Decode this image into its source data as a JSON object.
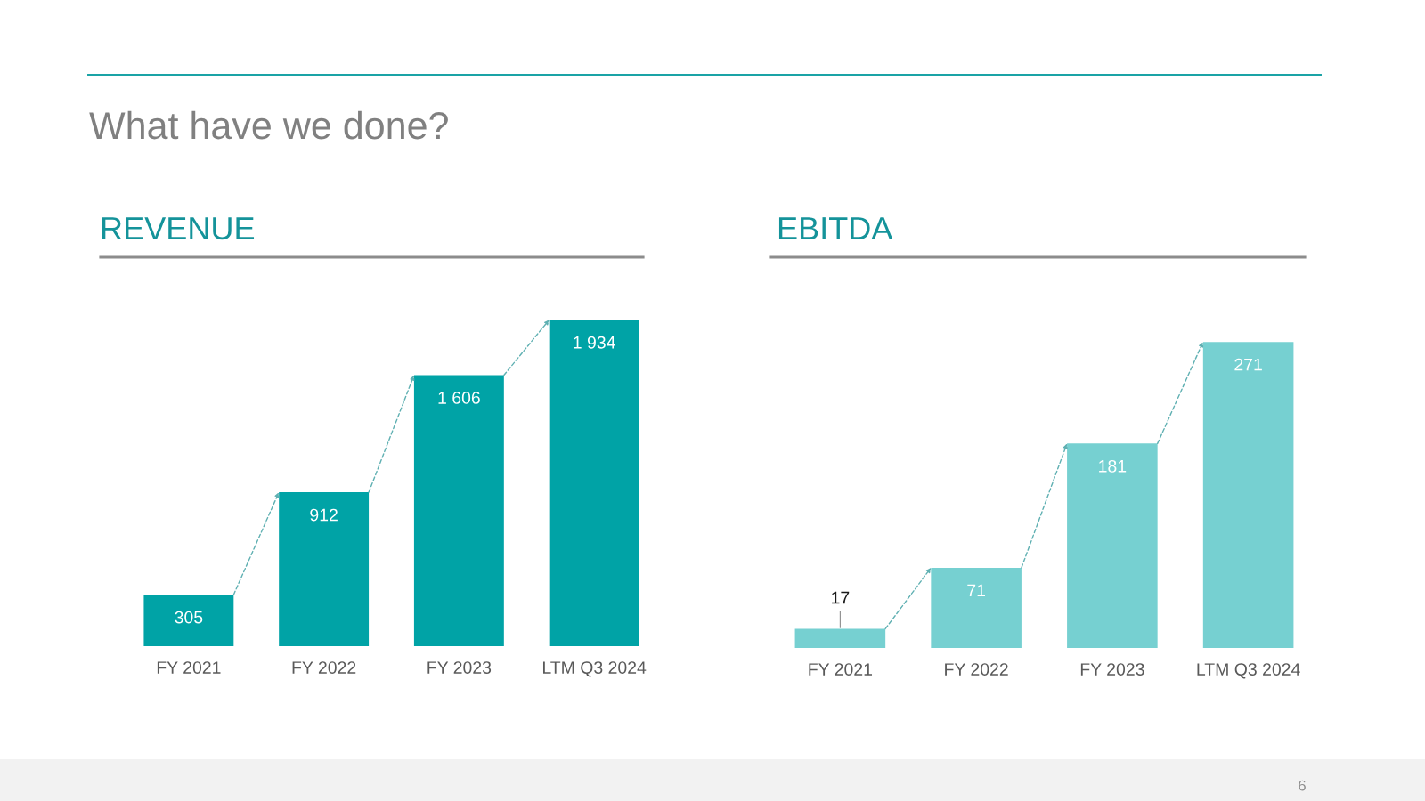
{
  "chart_data": [
    {
      "type": "other",
      "title": "What have we done?",
      "annotations": [
        "6"
      ]
    },
    {
      "type": "bar",
      "title": "REVENUE",
      "categories": [
        "FY 2021",
        "FY 2022",
        "FY 2023",
        "LTM Q3 2024"
      ],
      "values": [
        305,
        912,
        1606,
        1934
      ],
      "color": "#00a3a6",
      "value_labels": [
        "305",
        "912",
        "1 606",
        "1 934"
      ],
      "tick_labels": "x"
    },
    {
      "type": "bar",
      "title": "EBITDA",
      "categories": [
        "FY 2021",
        "FY 2022",
        "FY 2023",
        "LTM Q3 2024"
      ],
      "values": [
        17,
        71,
        181,
        271
      ],
      "color": "#76d0d1",
      "data_labels": true,
      "tick_labels": "x"
    }
  ]
}
